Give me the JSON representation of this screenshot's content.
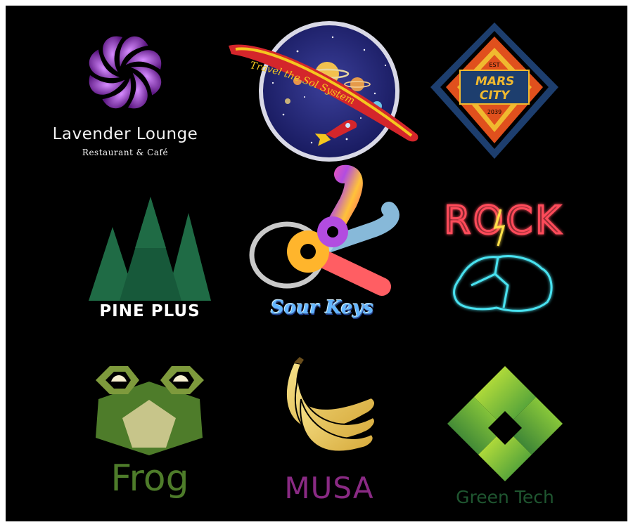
{
  "logos": {
    "lavender": {
      "name": "Lavender Lounge",
      "subtitle": "Restaurant & Café"
    },
    "sol": {
      "text": "Travel the Sol System"
    },
    "mars": {
      "est": "EST",
      "line1": "MARS",
      "line2": "CITY",
      "year": "2039"
    },
    "pine": {
      "name": "PINE PLUS"
    },
    "keys": {
      "name": "Sour Keys"
    },
    "rock": {
      "name": "ROCK"
    },
    "frog": {
      "name": "Frog"
    },
    "musa": {
      "name": "MUSA"
    },
    "greentech": {
      "name": "Green Tech"
    }
  },
  "colors": {
    "background": "#000000",
    "lavender": "#8a2fb0",
    "pine": "#1f6b45",
    "frog": "#4e7c2a",
    "musa": "#8a2a84",
    "greentech": "#7ac52f"
  }
}
